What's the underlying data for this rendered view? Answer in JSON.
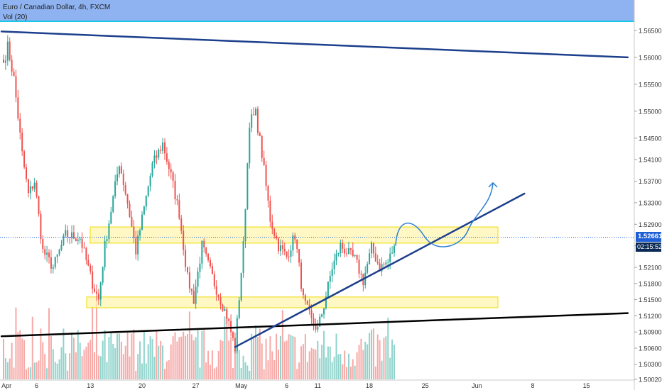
{
  "header": {
    "title": "Euro / Canadian Dollar, 4h, FXCM",
    "volume_label": "Vol (20)",
    "band_color": "#8fb3f0"
  },
  "last_price_label": "1.52661",
  "countdown_label": "02:15:52",
  "colors": {
    "up": "#26a69a",
    "down": "#ef5350",
    "vol_up": "#8fd3cb",
    "vol_down": "#f7a9a7",
    "trendline": "#1c3f8c",
    "support_line": "#000000",
    "zone_fill": "#fff4b0",
    "zone_stroke": "#f0dc00",
    "arrow": "#2f80d0",
    "badge": "#1f5fd6"
  },
  "chart_data": {
    "type": "candlestick",
    "symbol": "EURCAD",
    "timeframe": "4h",
    "ylim": [
      1.5002,
      1.5667
    ],
    "y_ticks": [
      "1.56500",
      "1.56000",
      "1.55500",
      "1.55000",
      "1.54500",
      "1.54100",
      "1.53700",
      "1.53300",
      "1.52900",
      "1.52500",
      "1.52100",
      "1.51800",
      "1.51500",
      "1.51200",
      "1.50900",
      "1.50600",
      "1.50300",
      "1.50020"
    ],
    "x_tick_labels": [
      "Apr",
      "6",
      "13",
      "20",
      "27",
      "May",
      "6",
      "11",
      "18",
      "25",
      "Jun",
      "8",
      "15"
    ],
    "x_tick_bar_index": [
      -1,
      16,
      42,
      67,
      93,
      115,
      137,
      152,
      177,
      204,
      229,
      256,
      282
    ],
    "last_price": 1.52661,
    "anchors": [
      [
        0,
        1.559
      ],
      [
        2,
        1.562
      ],
      [
        5,
        1.556
      ],
      [
        9,
        1.542
      ],
      [
        12,
        1.5345
      ],
      [
        15,
        1.537
      ],
      [
        19,
        1.524
      ],
      [
        24,
        1.521
      ],
      [
        30,
        1.527
      ],
      [
        37,
        1.5265
      ],
      [
        43,
        1.518
      ],
      [
        46,
        1.515
      ],
      [
        49,
        1.525
      ],
      [
        56,
        1.5405
      ],
      [
        60,
        1.533
      ],
      [
        64,
        1.524
      ],
      [
        68,
        1.532
      ],
      [
        72,
        1.54
      ],
      [
        77,
        1.544
      ],
      [
        81,
        1.538
      ],
      [
        85,
        1.531
      ],
      [
        89,
        1.519
      ],
      [
        92,
        1.515
      ],
      [
        96,
        1.525
      ],
      [
        102,
        1.518
      ],
      [
        108,
        1.512
      ],
      [
        112,
        1.506
      ],
      [
        116,
        1.525
      ],
      [
        119,
        1.548
      ],
      [
        122,
        1.5495
      ],
      [
        125,
        1.542
      ],
      [
        129,
        1.53
      ],
      [
        133,
        1.525
      ],
      [
        137,
        1.523
      ],
      [
        141,
        1.527
      ],
      [
        145,
        1.515
      ],
      [
        149,
        1.511
      ],
      [
        152,
        1.5095
      ],
      [
        155,
        1.514
      ],
      [
        159,
        1.521
      ],
      [
        163,
        1.525
      ],
      [
        167,
        1.5235
      ],
      [
        170,
        1.5225
      ],
      [
        174,
        1.5185
      ],
      [
        178,
        1.5245
      ],
      [
        182,
        1.521
      ],
      [
        186,
        1.522
      ],
      [
        189,
        1.525
      ]
    ],
    "annotations": {
      "resistance_zone": [
        1.5255,
        1.5285
      ],
      "support_zone": [
        1.5135,
        1.5155
      ],
      "upper_trendline": [
        [
          -1,
          1.5648
        ],
        [
          302,
          1.56
        ]
      ],
      "lower_support_line": [
        [
          -1,
          1.5082
        ],
        [
          302,
          1.5125
        ]
      ],
      "rising_trendline": [
        [
          112,
          1.5062
        ],
        [
          252,
          1.5347
        ]
      ],
      "projection_peak_price": 1.5367
    }
  }
}
